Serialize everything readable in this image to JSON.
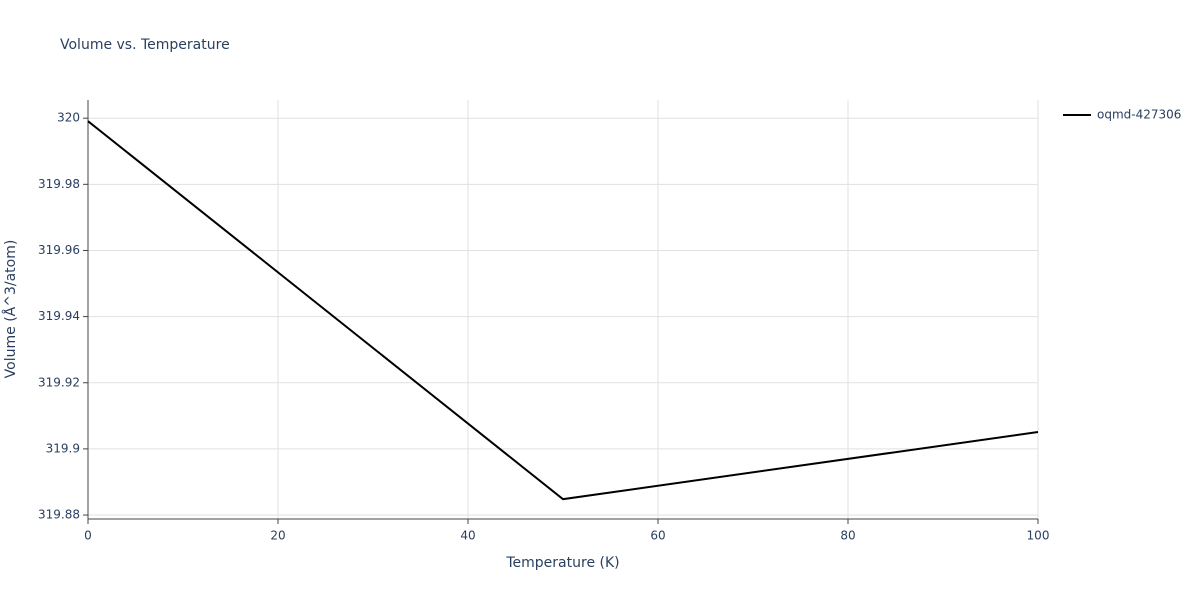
{
  "chart_data": {
    "type": "line",
    "title": "Volume vs. Temperature",
    "x_label": "Temperature (K)",
    "y_label": "Volume (Å^3/atom)",
    "x": [
      0,
      50,
      100
    ],
    "series": [
      {
        "name": "oqmd-427306",
        "color": "#000000",
        "values": [
          319.9991,
          319.8848,
          319.9051
        ]
      }
    ],
    "xlim": [
      0,
      100
    ],
    "xticks": [
      0,
      20,
      40,
      60,
      80,
      100
    ],
    "ylim": [
      319.8788,
      320.0055
    ],
    "yticks": [
      319.88,
      319.9,
      319.92,
      319.94,
      319.96,
      319.98,
      320
    ],
    "grid": true,
    "legend": "right"
  }
}
